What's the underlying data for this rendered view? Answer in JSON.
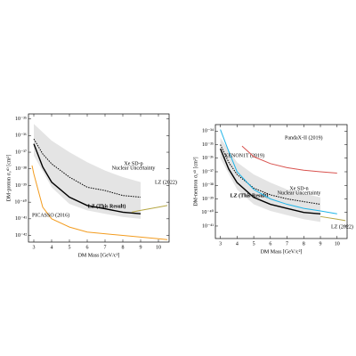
{
  "chart_data": [
    {
      "type": "line",
      "yscale": "log",
      "xlabel": "DM Mass [GeV/c²]",
      "ylabel": "DM-proton σ₀ˢᴰ [cm²]",
      "xlim": [
        2.7,
        10.6
      ],
      "xticks": [
        3,
        4,
        5,
        6,
        7,
        8,
        9,
        10
      ],
      "ylim": [
        4e-43,
        2e-35
      ],
      "yticks": [
        {
          "value": 1e-35,
          "label": "10⁻³⁵"
        },
        {
          "value": 1e-36,
          "label": "10⁻³⁶"
        },
        {
          "value": 1e-37,
          "label": "10⁻³⁷"
        },
        {
          "value": 1e-38,
          "label": "10⁻³⁸"
        },
        {
          "value": 1e-39,
          "label": "10⁻³⁹"
        },
        {
          "value": 1e-40,
          "label": "10⁻⁴⁰"
        },
        {
          "value": 1e-41,
          "label": "10⁻⁴¹"
        },
        {
          "value": 1e-42,
          "label": "10⁻⁴²"
        }
      ],
      "band": {
        "label": [
          "Xe SD-p",
          "Nuclear Uncertainty"
        ],
        "color": "#e4e4e4",
        "x": [
          3,
          4,
          5,
          6,
          7,
          8,
          9
        ],
        "upper": [
          5e-36,
          5e-37,
          1e-37,
          2.5e-38,
          7.9e-39,
          3.2e-39,
          1.6e-39
        ],
        "lower": [
          6.3e-38,
          7.9e-40,
          7.9e-41,
          3.2e-41,
          2e-41,
          1.3e-41,
          1e-41
        ]
      },
      "series": [
        {
          "name": "LZ (This Result)",
          "color": "#000000",
          "x": [
            3,
            3.5,
            4,
            5,
            6,
            7,
            8,
            9
          ],
          "values": [
            3.2e-37,
            1.3e-38,
            1.6e-39,
            2e-40,
            6.3e-41,
            4e-41,
            2.5e-41,
            2e-41
          ]
        },
        {
          "color": "#000000",
          "dashed": true,
          "x": [
            3,
            3.5,
            4,
            5,
            6,
            7,
            8,
            9
          ],
          "values": [
            6.3e-37,
            7.9e-38,
            2e-38,
            3.2e-39,
            7.9e-40,
            5e-40,
            2.5e-40,
            2e-40
          ]
        },
        {
          "name": "PICASSO (2016)",
          "color": "#f39c1f",
          "x": [
            2.9,
            3,
            3.5,
            4,
            5,
            6,
            8,
            10,
            10.5
          ],
          "values": [
            1.6e-38,
            5e-39,
            5e-41,
            1e-41,
            3.2e-42,
            1.6e-42,
            1e-42,
            6.3e-43,
            5.6e-43
          ]
        },
        {
          "name": "LZ (2022)",
          "color": "#b5a642",
          "x": [
            8.5,
            9,
            10,
            10.5
          ],
          "values": [
            2.5e-41,
            3.2e-41,
            5e-41,
            6.3e-41
          ]
        }
      ]
    },
    {
      "type": "line",
      "yscale": "log",
      "xlabel": "DM Mass [GeV/c²]",
      "ylabel": "DM-neutron σ₀ˢᴰ [cm²]",
      "xlim": [
        2.7,
        10.6
      ],
      "xticks": [
        3,
        4,
        5,
        6,
        7,
        8,
        9,
        10
      ],
      "ylim": [
        1.2e-42,
        3e-34
      ],
      "yticks": [
        {
          "value": 1e-34,
          "label": "10⁻³⁴"
        },
        {
          "value": 1e-35,
          "label": "10⁻³⁵"
        },
        {
          "value": 1e-36,
          "label": "10⁻³⁶"
        },
        {
          "value": 1e-37,
          "label": "10⁻³⁷"
        },
        {
          "value": 1e-38,
          "label": "10⁻³⁸"
        },
        {
          "value": 1e-39,
          "label": "10⁻³⁹"
        },
        {
          "value": 1e-40,
          "label": "10⁻⁴⁰"
        },
        {
          "value": 1e-41,
          "label": "10⁻⁴¹"
        }
      ],
      "band": {
        "label": [
          "Xe SD-n",
          "Nuclear Uncertainty"
        ],
        "color": "#e4e4e4",
        "x": [
          3,
          4,
          5,
          6,
          7,
          8,
          9
        ],
        "upper": [
          3.2e-35,
          5e-37,
          6.3e-38,
          1.6e-38,
          5e-39,
          2.5e-39,
          1.3e-39
        ],
        "lower": [
          1e-36,
          5e-39,
          4e-40,
          1.3e-40,
          6.3e-41,
          3.2e-41,
          2e-41
        ]
      },
      "series": [
        {
          "name": "LZ (This Result)",
          "color": "#000000",
          "x": [
            3,
            3.5,
            4,
            5,
            6,
            7,
            8,
            9
          ],
          "values": [
            5e-36,
            1.6e-37,
            1.6e-38,
            1.3e-39,
            4e-40,
            2e-40,
            1e-40,
            7.9e-41
          ]
        },
        {
          "color": "#000000",
          "dashed": true,
          "x": [
            3,
            3.5,
            4,
            5,
            6,
            7,
            8,
            9
          ],
          "values": [
            1e-35,
            5e-37,
            6.3e-38,
            6.3e-39,
            2e-39,
            1e-39,
            6.3e-40,
            4e-40
          ]
        },
        {
          "name": "XENON1T (2019)",
          "color": "#1fb5e8",
          "x": [
            3,
            3.5,
            4,
            5,
            6,
            7,
            8,
            9,
            10
          ],
          "values": [
            1.3e-34,
            3.2e-36,
            1e-37,
            5e-39,
            1e-39,
            4e-40,
            2e-40,
            1.3e-40,
            7.9e-41
          ]
        },
        {
          "name": "PandaX-II (2019)",
          "color": "#d9534f",
          "x": [
            4.3,
            5,
            6,
            7,
            8,
            9,
            10
          ],
          "values": [
            7.9e-36,
            1.3e-36,
            4e-37,
            2e-37,
            1.3e-37,
            1e-37,
            7.9e-38
          ]
        },
        {
          "name": "LZ (2022)",
          "color": "#b5a642",
          "x": [
            9,
            10,
            10.5
          ],
          "values": [
            5e-41,
            3.2e-41,
            2.5e-41
          ]
        }
      ]
    }
  ]
}
